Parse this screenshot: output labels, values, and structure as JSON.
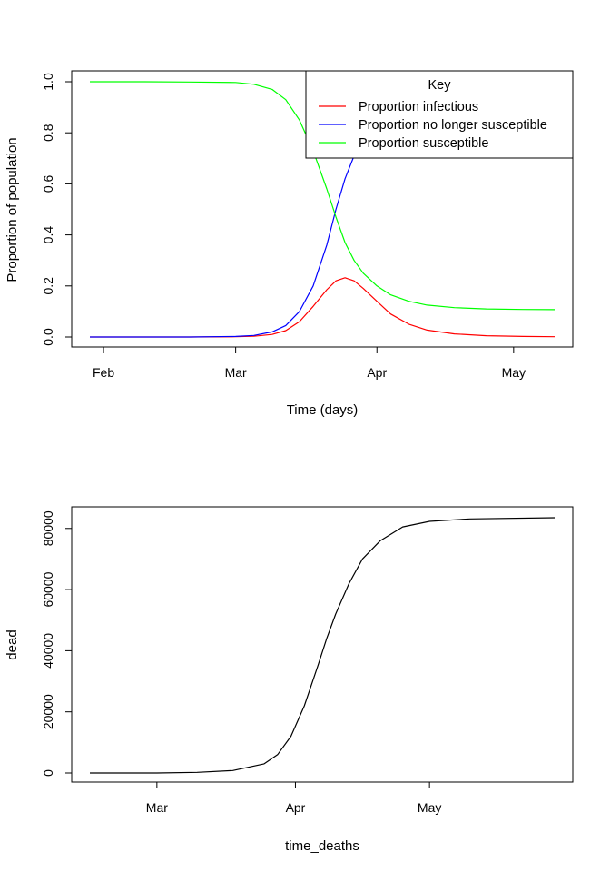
{
  "chart_data": [
    {
      "type": "line",
      "xlabel": "Time (days)",
      "ylabel": "Proportion of population",
      "ylim": [
        0,
        1
      ],
      "xlim": [
        "2020-01-29",
        "2020-05-10"
      ],
      "x_ticks": [
        {
          "date": "2020-02-01",
          "label": "Feb"
        },
        {
          "date": "2020-03-01",
          "label": "Mar"
        },
        {
          "date": "2020-04-01",
          "label": "Apr"
        },
        {
          "date": "2020-05-01",
          "label": "May"
        }
      ],
      "y_ticks": [
        {
          "value": 0,
          "label": "0.0"
        },
        {
          "value": 0.2,
          "label": "0.2"
        },
        {
          "value": 0.4,
          "label": "0.4"
        },
        {
          "value": 0.6,
          "label": "0.6"
        },
        {
          "value": 0.8,
          "label": "0.8"
        },
        {
          "value": 1,
          "label": "1.0"
        }
      ],
      "grid": false,
      "legend": {
        "title": "Key",
        "position": "top-right"
      },
      "series": [
        {
          "name": "Proportion infectious",
          "color": "#ff0000",
          "points": [
            [
              "2020-01-29",
              0.0
            ],
            [
              "2020-02-10",
              0.0
            ],
            [
              "2020-02-20",
              0.0
            ],
            [
              "2020-03-01",
              0.001
            ],
            [
              "2020-03-05",
              0.003
            ],
            [
              "2020-03-09",
              0.01
            ],
            [
              "2020-03-12",
              0.025
            ],
            [
              "2020-03-15",
              0.06
            ],
            [
              "2020-03-18",
              0.12
            ],
            [
              "2020-03-21",
              0.185
            ],
            [
              "2020-03-23",
              0.22
            ],
            [
              "2020-03-25",
              0.232
            ],
            [
              "2020-03-27",
              0.22
            ],
            [
              "2020-03-29",
              0.19
            ],
            [
              "2020-04-01",
              0.14
            ],
            [
              "2020-04-04",
              0.09
            ],
            [
              "2020-04-08",
              0.05
            ],
            [
              "2020-04-12",
              0.027
            ],
            [
              "2020-04-18",
              0.012
            ],
            [
              "2020-04-25",
              0.005
            ],
            [
              "2020-05-03",
              0.002
            ],
            [
              "2020-05-10",
              0.001
            ]
          ]
        },
        {
          "name": "Proportion no longer susceptible",
          "color": "#0000ff",
          "points": [
            [
              "2020-01-29",
              0.0
            ],
            [
              "2020-02-10",
              0.0
            ],
            [
              "2020-02-20",
              0.0
            ],
            [
              "2020-03-01",
              0.002
            ],
            [
              "2020-03-05",
              0.006
            ],
            [
              "2020-03-09",
              0.02
            ],
            [
              "2020-03-12",
              0.045
            ],
            [
              "2020-03-15",
              0.1
            ],
            [
              "2020-03-18",
              0.2
            ],
            [
              "2020-03-21",
              0.36
            ],
            [
              "2020-03-23",
              0.5
            ],
            [
              "2020-03-25",
              0.62
            ],
            [
              "2020-03-27",
              0.71
            ],
            [
              "2020-03-28",
              0.745
            ]
          ]
        },
        {
          "name": "Proportion susceptible",
          "color": "#00ff00",
          "points": [
            [
              "2020-01-29",
              1.0
            ],
            [
              "2020-02-10",
              1.0
            ],
            [
              "2020-02-20",
              0.999
            ],
            [
              "2020-03-01",
              0.997
            ],
            [
              "2020-03-05",
              0.99
            ],
            [
              "2020-03-09",
              0.97
            ],
            [
              "2020-03-12",
              0.93
            ],
            [
              "2020-03-15",
              0.85
            ],
            [
              "2020-03-18",
              0.73
            ],
            [
              "2020-03-21",
              0.58
            ],
            [
              "2020-03-23",
              0.47
            ],
            [
              "2020-03-25",
              0.37
            ],
            [
              "2020-03-27",
              0.3
            ],
            [
              "2020-03-29",
              0.25
            ],
            [
              "2020-04-01",
              0.2
            ],
            [
              "2020-04-04",
              0.165
            ],
            [
              "2020-04-08",
              0.14
            ],
            [
              "2020-04-12",
              0.125
            ],
            [
              "2020-04-18",
              0.115
            ],
            [
              "2020-04-25",
              0.11
            ],
            [
              "2020-05-03",
              0.108
            ],
            [
              "2020-05-10",
              0.107
            ]
          ]
        }
      ]
    },
    {
      "type": "line",
      "xlabel": "time_deaths",
      "ylabel": "dead",
      "ylim": [
        0,
        83500
      ],
      "xlim": [
        "2020-02-15",
        "2020-05-29"
      ],
      "x_ticks": [
        {
          "date": "2020-03-01",
          "label": "Mar"
        },
        {
          "date": "2020-04-01",
          "label": "Apr"
        },
        {
          "date": "2020-05-01",
          "label": "May"
        }
      ],
      "y_ticks": [
        {
          "value": 0,
          "label": "0"
        },
        {
          "value": 20000,
          "label": "20000"
        },
        {
          "value": 40000,
          "label": "40000"
        },
        {
          "value": 60000,
          "label": "60000"
        },
        {
          "value": 80000,
          "label": "80000"
        }
      ],
      "grid": false,
      "series": [
        {
          "color": "#000000",
          "points": [
            [
              "2020-02-15",
              0
            ],
            [
              "2020-03-01",
              0
            ],
            [
              "2020-03-10",
              200
            ],
            [
              "2020-03-18",
              800
            ],
            [
              "2020-03-25",
              3000
            ],
            [
              "2020-03-28",
              6000
            ],
            [
              "2020-03-31",
              12000
            ],
            [
              "2020-04-03",
              22000
            ],
            [
              "2020-04-06",
              35000
            ],
            [
              "2020-04-08",
              44000
            ],
            [
              "2020-04-10",
              52000
            ],
            [
              "2020-04-13",
              62000
            ],
            [
              "2020-04-16",
              70000
            ],
            [
              "2020-04-20",
              76000
            ],
            [
              "2020-04-25",
              80500
            ],
            [
              "2020-05-01",
              82300
            ],
            [
              "2020-05-10",
              83100
            ],
            [
              "2020-05-29",
              83500
            ]
          ]
        }
      ]
    }
  ]
}
